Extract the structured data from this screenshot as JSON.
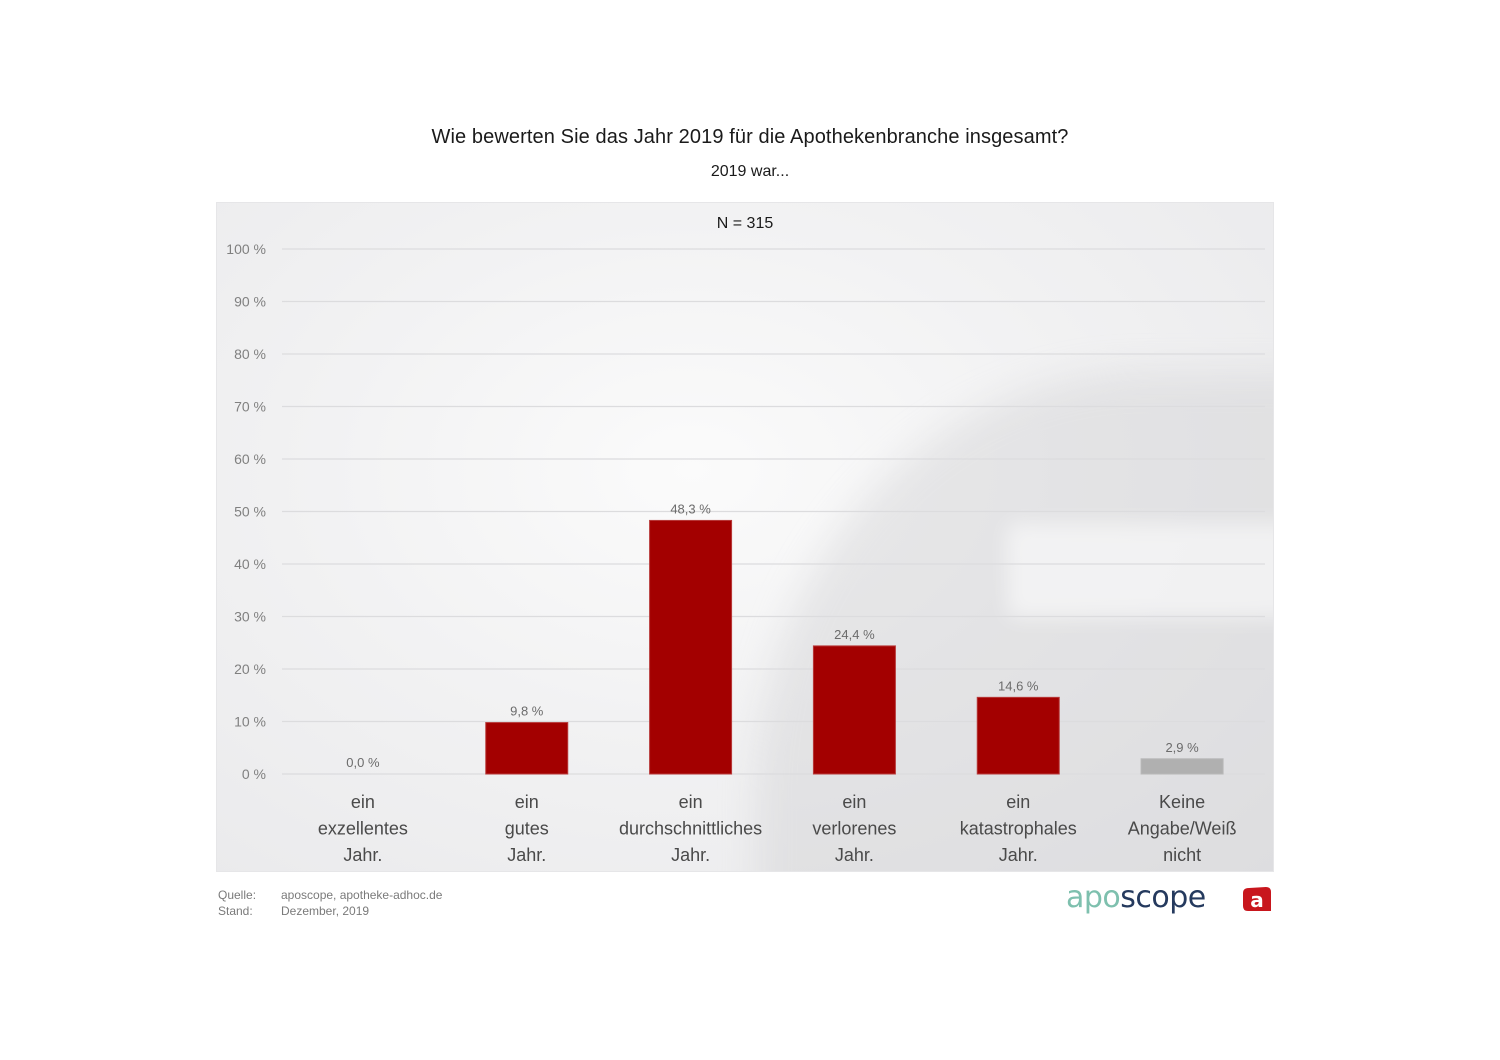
{
  "header": {
    "title": "Wie bewerten Sie das Jahr 2019 für die Apothekenbranche insgesamt?",
    "subtitle": "2019 war..."
  },
  "chart_data": {
    "type": "bar",
    "title": "Wie bewerten Sie das Jahr 2019 für die Apothekenbranche insgesamt?",
    "subtitle": "2019 war...",
    "annotation": "N = 315",
    "xlabel": "",
    "ylabel": "",
    "ylim": [
      0,
      100
    ],
    "grid": true,
    "yticks": [
      0,
      10,
      20,
      30,
      40,
      50,
      60,
      70,
      80,
      90,
      100
    ],
    "ytick_labels": [
      "0 %",
      "10 %",
      "20 %",
      "30 %",
      "40 %",
      "50 %",
      "60 %",
      "70 %",
      "80 %",
      "90 %",
      "100 %"
    ],
    "categories": [
      [
        "ein",
        "exzellentes",
        "Jahr."
      ],
      [
        "ein",
        "gutes",
        "Jahr."
      ],
      [
        "ein",
        "durchschnittliches",
        "Jahr."
      ],
      [
        "ein",
        "verlorenes",
        "Jahr."
      ],
      [
        "ein",
        "katastrophales",
        "Jahr."
      ],
      [
        "Keine",
        "Angabe/Weiß",
        "nicht"
      ]
    ],
    "values": [
      0.0,
      9.8,
      48.3,
      24.4,
      14.6,
      2.9
    ],
    "value_labels": [
      "0,0 %",
      "9,8 %",
      "48,3 %",
      "24,4 %",
      "14,6 %",
      "2,9 %"
    ],
    "colors": [
      "#a30000",
      "#a30000",
      "#a30000",
      "#a30000",
      "#a30000",
      "#b0b0b0"
    ]
  },
  "footer": {
    "source_key": "Quelle:",
    "source_value": "aposcope, apotheke-adhoc.de",
    "date_key": "Stand:",
    "date_value": "Dezember,  2019"
  },
  "logos": {
    "aposcope_part1": "apo",
    "aposcope_part2": "scope",
    "aposcope_color1": "#7ec0ae",
    "aposcope_color2": "#253a5e",
    "adhoc_letter": "a",
    "adhoc_color": "#c8161d"
  }
}
